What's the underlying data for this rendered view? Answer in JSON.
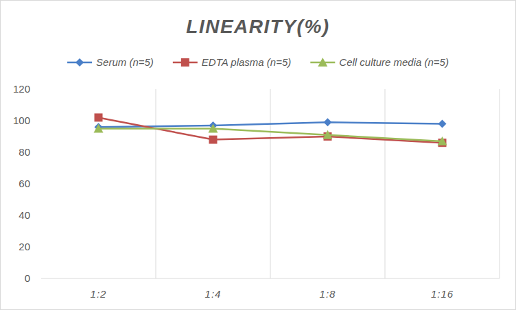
{
  "chart_data": {
    "type": "line",
    "title": "LINEARITY(%)",
    "categories": [
      "1:2",
      "1:4",
      "1:8",
      "1:16"
    ],
    "series": [
      {
        "name": "Serum (n=5)",
        "color": "#4a7fc8",
        "marker": "diamond",
        "values": [
          96,
          97,
          99,
          98
        ]
      },
      {
        "name": "EDTA plasma (n=5)",
        "color": "#c0504d",
        "marker": "square",
        "values": [
          102,
          88,
          90,
          86
        ]
      },
      {
        "name": "Cell culture media (n=5)",
        "color": "#9bbb59",
        "marker": "triangle",
        "values": [
          95,
          95,
          91,
          87
        ]
      }
    ],
    "ylim": [
      0,
      120
    ],
    "yticks": [
      0,
      20,
      40,
      60,
      80,
      100,
      120
    ],
    "grid": true,
    "legend": "top"
  }
}
